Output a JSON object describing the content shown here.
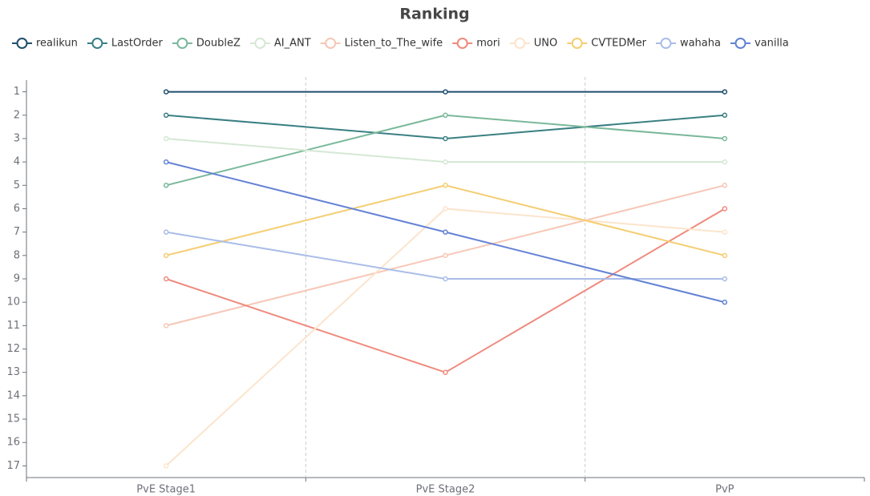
{
  "chart_data": {
    "type": "line",
    "title": "Ranking",
    "categories": [
      "PvE Stage1",
      "PvE Stage2",
      "PvP"
    ],
    "series": [
      {
        "name": "realikun",
        "color": "#1f4e6b",
        "values": [
          1,
          1,
          1
        ]
      },
      {
        "name": "LastOrder",
        "color": "#3a7f83",
        "values": [
          2,
          3,
          2
        ]
      },
      {
        "name": "DoubleZ",
        "color": "#7ab89a",
        "values": [
          5,
          2,
          3
        ]
      },
      {
        "name": "AI_ANT",
        "color": "#d5e8d4",
        "values": [
          3,
          4,
          4
        ]
      },
      {
        "name": "Listen_to_The_wife",
        "color": "#f6c7b6",
        "values": [
          11,
          8,
          5
        ]
      },
      {
        "name": "mori",
        "color": "#ef8b7e",
        "values": [
          9,
          13,
          6
        ]
      },
      {
        "name": "UNO",
        "color": "#fce4cc",
        "values": [
          17,
          6,
          7
        ]
      },
      {
        "name": "CVTEDMer",
        "color": "#f5cd72",
        "values": [
          8,
          5,
          8
        ]
      },
      {
        "name": "wahaha",
        "color": "#a9bde8",
        "values": [
          7,
          9,
          9
        ]
      },
      {
        "name": "vanilla",
        "color": "#6482d4",
        "values": [
          4,
          7,
          10
        ]
      }
    ],
    "ylim": [
      0.5,
      17.5
    ],
    "y_inverse": true,
    "yticks": [
      1,
      2,
      3,
      4,
      5,
      6,
      7,
      8,
      9,
      10,
      11,
      12,
      13,
      14,
      15,
      16,
      17
    ],
    "grid": "x",
    "legend": "top"
  }
}
